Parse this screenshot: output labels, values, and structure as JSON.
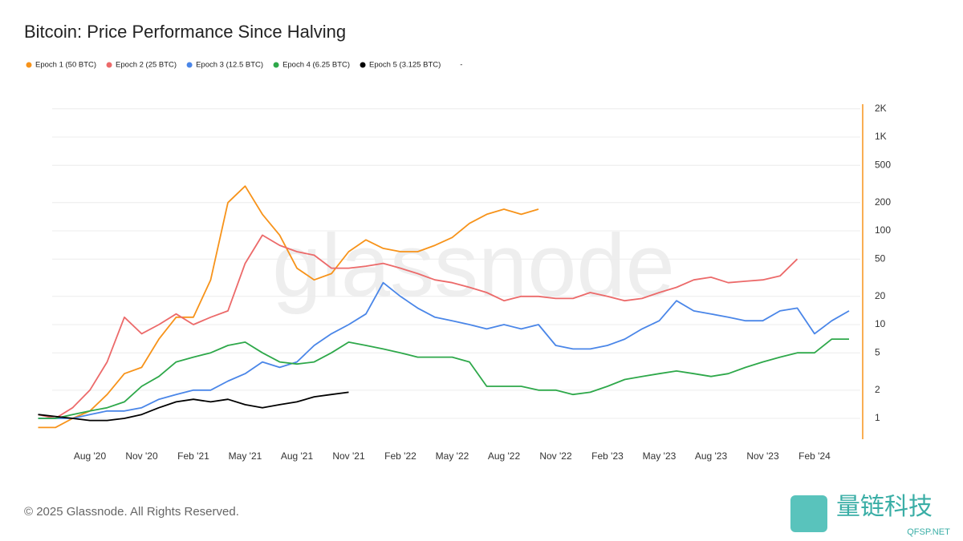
{
  "chart_data": {
    "type": "line",
    "title": "Bitcoin: Price Performance Since Halving",
    "watermark": "glassnode",
    "footer": "© 2025 Glassnode. All Rights Reserved.",
    "brand": "量链科技",
    "brand_site": "QFSP.NET",
    "log_scale": true,
    "grid": true,
    "categories": [
      null,
      null,
      null,
      "Aug '20",
      null,
      null,
      "Nov '20",
      null,
      null,
      "Feb '21",
      null,
      null,
      "May '21",
      null,
      null,
      "Aug '21",
      null,
      null,
      "Nov '21",
      null,
      null,
      "Feb '22",
      null,
      null,
      "May '22",
      null,
      null,
      "Aug '22",
      null,
      null,
      "Nov '22",
      null,
      null,
      "Feb '23",
      null,
      null,
      "May '23",
      null,
      null,
      "Aug '23",
      null,
      null,
      "Nov '23",
      null,
      null,
      "Feb '24",
      null,
      null
    ],
    "ylim": [
      0.6,
      2240
    ],
    "yticks": [
      1,
      2,
      5,
      10,
      20,
      50,
      100,
      200,
      500,
      {
        "value": 1000,
        "label": "1K"
      },
      {
        "value": 2000,
        "label": "2K"
      }
    ],
    "series": [
      {
        "name": "Epoch 1 (50 BTC)",
        "color": "#f7931a",
        "values": [
          0.8,
          0.8,
          1.0,
          1.2,
          1.8,
          3,
          3.5,
          7,
          12,
          12,
          30,
          200,
          300,
          150,
          90,
          40,
          30,
          35,
          60,
          80,
          65,
          60,
          60,
          70,
          85,
          120,
          150,
          170,
          150,
          170,
          null,
          null,
          null,
          null,
          null,
          null,
          null,
          null,
          null,
          null,
          null,
          null,
          null,
          null,
          null,
          null,
          null,
          null
        ]
      },
      {
        "name": "Epoch 2 (25 BTC)",
        "color": "#ec6a6a",
        "values": [
          1.1,
          1.0,
          1.3,
          2,
          4,
          12,
          8,
          10,
          13,
          10,
          12,
          14,
          45,
          90,
          70,
          60,
          55,
          40,
          40,
          42,
          45,
          40,
          35,
          30,
          28,
          25,
          22,
          18,
          20,
          20,
          19,
          19,
          22,
          20,
          18,
          19,
          22,
          25,
          30,
          32,
          28,
          29,
          30,
          33,
          50,
          null,
          null,
          null
        ]
      },
      {
        "name": "Epoch 3 (12.5 BTC)",
        "color": "#4a86e8",
        "values": [
          1.0,
          1.0,
          1.0,
          1.1,
          1.2,
          1.2,
          1.3,
          1.6,
          1.8,
          2.0,
          2.0,
          2.5,
          3,
          4,
          3.5,
          4,
          6,
          8,
          10,
          13,
          28,
          20,
          15,
          12,
          11,
          10,
          9,
          10,
          9,
          10,
          6,
          5.5,
          5.5,
          6,
          7,
          9,
          11,
          18,
          14,
          13,
          12,
          11,
          11,
          14,
          15,
          8,
          11,
          14
        ]
      },
      {
        "name": "Epoch 4 (6.25 BTC)",
        "color": "#2ea84a",
        "values": [
          1.0,
          1.0,
          1.1,
          1.2,
          1.3,
          1.5,
          2.2,
          2.8,
          4,
          4.5,
          5,
          6,
          6.5,
          5,
          4,
          3.8,
          4,
          5,
          6.5,
          6,
          5.5,
          5,
          4.5,
          4.5,
          4.5,
          4.0,
          2.2,
          2.2,
          2.2,
          2.0,
          2.0,
          1.8,
          1.9,
          2.2,
          2.6,
          2.8,
          3,
          3.2,
          3.0,
          2.8,
          3.0,
          3.5,
          4,
          4.5,
          5,
          5,
          7,
          7
        ]
      },
      {
        "name": "Epoch 5 (3.125 BTC)",
        "color": "#000000",
        "values": [
          1.1,
          1.05,
          1.0,
          0.95,
          0.95,
          1.0,
          1.1,
          1.3,
          1.5,
          1.6,
          1.5,
          1.6,
          1.4,
          1.3,
          1.4,
          1.5,
          1.7,
          1.8,
          1.9,
          null,
          null,
          null,
          null,
          null,
          null,
          null,
          null,
          null,
          null,
          null,
          null,
          null,
          null,
          null,
          null,
          null,
          null,
          null,
          null,
          null,
          null,
          null,
          null,
          null,
          null,
          null,
          null,
          null
        ]
      },
      {
        "name": "-",
        "color": "#ffffff",
        "values": [
          null,
          null,
          null,
          null,
          null,
          null,
          null,
          null,
          null,
          null,
          null,
          null,
          null,
          null,
          null,
          null,
          null,
          null,
          null,
          null,
          null,
          null,
          null,
          null,
          null,
          null,
          null,
          null,
          null,
          null,
          null,
          null,
          null,
          null,
          null,
          null,
          null,
          null,
          null,
          null,
          null,
          null,
          null,
          null,
          null,
          null,
          null,
          null
        ]
      }
    ]
  }
}
